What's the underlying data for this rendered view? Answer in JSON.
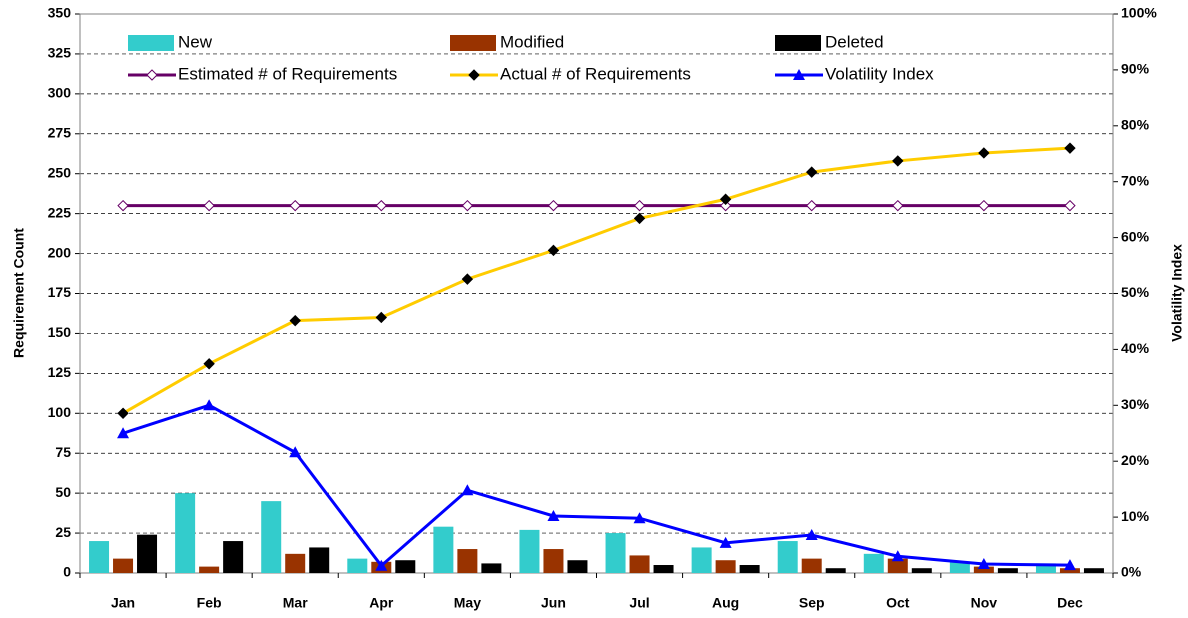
{
  "chart_data": {
    "type": "bar",
    "categories": [
      "Jan",
      "Feb",
      "Mar",
      "Apr",
      "May",
      "Jun",
      "Jul",
      "Aug",
      "Sep",
      "Oct",
      "Nov",
      "Dec"
    ],
    "series": [
      {
        "name": "New",
        "type": "bar",
        "color": "#33CCCC",
        "values": [
          20,
          50,
          45,
          9,
          29,
          27,
          25,
          16,
          20,
          12,
          7,
          6
        ]
      },
      {
        "name": "Modified",
        "type": "bar",
        "color": "#993300",
        "values": [
          9,
          4,
          12,
          7,
          15,
          15,
          11,
          8,
          9,
          9,
          4,
          3
        ]
      },
      {
        "name": "Deleted",
        "type": "bar",
        "color": "#000000",
        "values": [
          24,
          20,
          16,
          8,
          6,
          8,
          5,
          5,
          3,
          3,
          3,
          3
        ]
      },
      {
        "name": "Estimated # of Requirements",
        "type": "line",
        "marker": "diamond-open",
        "color": "#660066",
        "values": [
          230,
          230,
          230,
          230,
          230,
          230,
          230,
          230,
          230,
          230,
          230,
          230
        ]
      },
      {
        "name": "Actual # of Requirements",
        "type": "line",
        "marker": "diamond",
        "color": "#FFCC00",
        "values": [
          100,
          131,
          158,
          160,
          184,
          202,
          222,
          234,
          251,
          258,
          263,
          266
        ]
      },
      {
        "name": "Volatility Index",
        "type": "line",
        "marker": "triangle",
        "color": "#0000FF",
        "axis": "y2",
        "values": [
          25,
          30,
          21.6,
          1.3,
          14.8,
          10.2,
          9.8,
          5.4,
          6.8,
          3.0,
          1.6,
          1.4
        ]
      }
    ],
    "ylabel": "Requirement Count",
    "y2label": "Volatility Index",
    "ylim": [
      0,
      350
    ],
    "yticks": [
      0,
      25,
      50,
      75,
      100,
      125,
      150,
      175,
      200,
      225,
      250,
      275,
      300,
      325,
      350
    ],
    "y2lim": [
      0,
      100
    ],
    "y2ticks": [
      {
        "value": 0,
        "label": "0%"
      },
      {
        "value": 10,
        "label": "10%"
      },
      {
        "value": 20,
        "label": "20%"
      },
      {
        "value": 30,
        "label": "30%"
      },
      {
        "value": 40,
        "label": "40%"
      },
      {
        "value": 50,
        "label": "50%"
      },
      {
        "value": 60,
        "label": "60%"
      },
      {
        "value": 70,
        "label": "70%"
      },
      {
        "value": 80,
        "label": "80%"
      },
      {
        "value": 90,
        "label": "90%"
      },
      {
        "value": 100,
        "label": "100%"
      }
    ],
    "grid": true,
    "legend": "top"
  }
}
